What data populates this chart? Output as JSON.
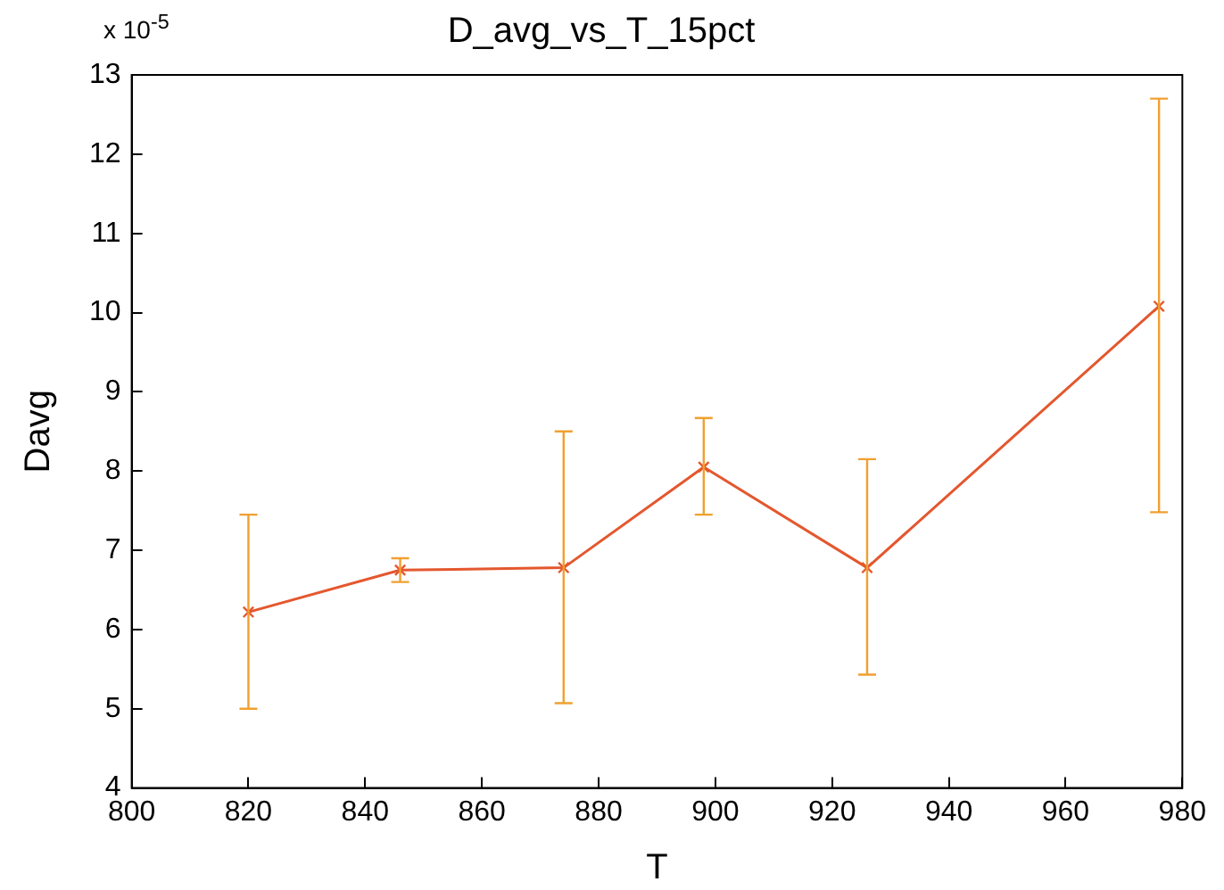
{
  "chart_data": {
    "type": "line",
    "title": "D_avg_vs_T_15pct",
    "xlabel": "T",
    "ylabel": "Davg",
    "annotations": [
      "x 10$^{-5}$"
    ],
    "x": [
      820,
      846,
      874,
      898,
      926,
      976
    ],
    "series": [
      {
        "color": "#e4572e",
        "values": [
          6.22,
          6.75,
          6.78,
          8.05,
          6.78,
          10.08
        ],
        "errors": [
          [
            5.0,
            7.45
          ],
          [
            6.6,
            6.9
          ],
          [
            5.07,
            8.5
          ],
          [
            7.45,
            8.67
          ],
          [
            5.43,
            8.15
          ],
          [
            7.48,
            12.7
          ]
        ]
      }
    ],
    "xlim": [
      800,
      980
    ],
    "xticks": [
      800,
      820,
      840,
      860,
      880,
      900,
      920,
      940,
      960,
      980
    ],
    "ylim": [
      4,
      13
    ],
    "yticks": [
      4,
      5,
      6,
      7,
      8,
      9,
      10,
      11,
      12,
      13
    ],
    "grid": false,
    "legend": false,
    "marker": "cross",
    "line_style": "solid"
  }
}
